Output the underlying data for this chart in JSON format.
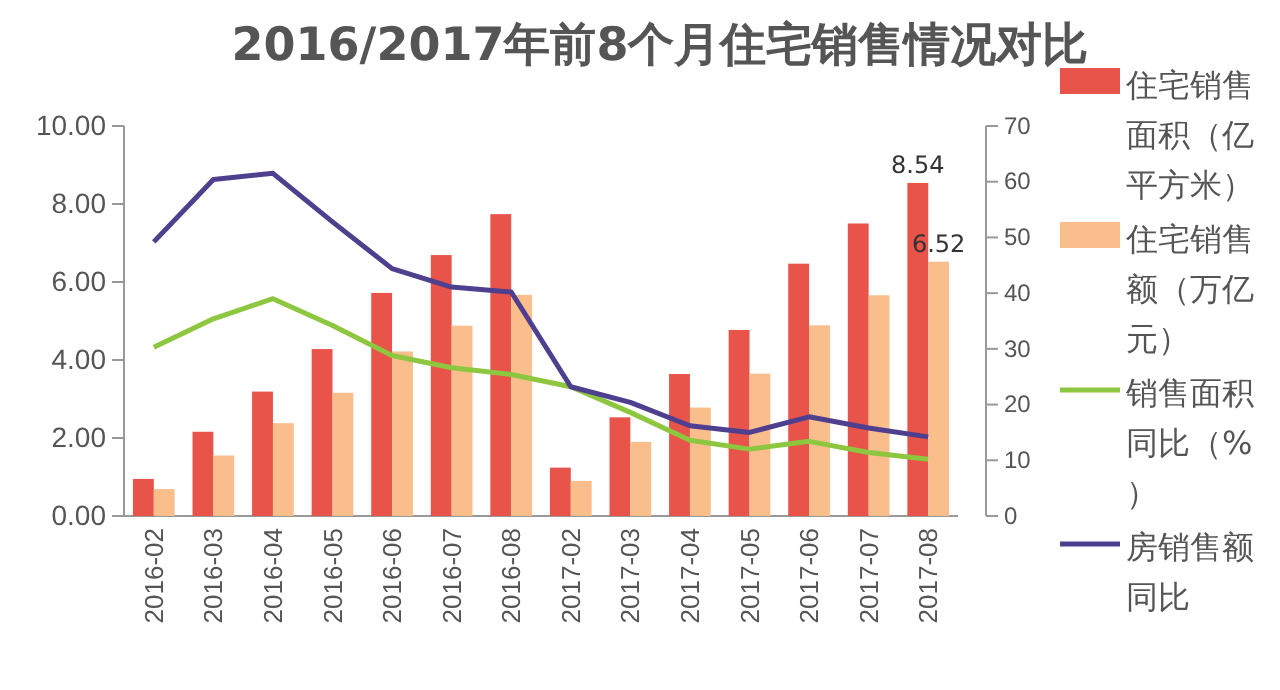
{
  "chart_data": {
    "type": "bar",
    "title": "2016/2017年前8个月住宅销售情况对比",
    "categories": [
      "2016-02",
      "2016-03",
      "2016-04",
      "2016-05",
      "2016-06",
      "2016-07",
      "2016-08",
      "2017-02",
      "2017-03",
      "2017-04",
      "2017-05",
      "2017-06",
      "2017-07",
      "2017-08"
    ],
    "series": [
      {
        "name": "住宅销售面积（亿平方米）",
        "color": "#e8534a",
        "values": [
          0.95,
          2.16,
          3.19,
          4.28,
          5.72,
          6.69,
          7.74,
          1.24,
          2.53,
          3.64,
          4.77,
          6.47,
          7.5,
          8.54
        ],
        "value_labels": [
          null,
          null,
          null,
          null,
          null,
          null,
          null,
          null,
          null,
          null,
          null,
          null,
          null,
          "8.54"
        ]
      },
      {
        "name": "住宅销售额（万亿元）",
        "color": "#f9be8c",
        "values": [
          0.69,
          1.55,
          2.38,
          3.16,
          4.22,
          4.88,
          5.67,
          0.9,
          1.9,
          2.78,
          3.65,
          4.89,
          5.66,
          6.52
        ],
        "value_labels": [
          null,
          null,
          null,
          null,
          null,
          null,
          null,
          null,
          null,
          null,
          null,
          null,
          null,
          "6.52"
        ]
      },
      {
        "name": "销售面积同比（%）",
        "type": "line",
        "axis": "y2",
        "color": "#8dc63f",
        "values": [
          30.3,
          35.4,
          39,
          34.2,
          28.8,
          26.6,
          25.4,
          23.2,
          18.6,
          13.6,
          12,
          13.4,
          11.4,
          10.2
        ]
      },
      {
        "name": "房销售额同比",
        "type": "line",
        "axis": "y2",
        "color": "#4f3f8f",
        "values": [
          49.2,
          60.4,
          61.5,
          52.8,
          44.4,
          41.1,
          40.2,
          23.2,
          20.4,
          16.2,
          15,
          17.8,
          15.8,
          14.2
        ]
      }
    ],
    "ylim": [
      0,
      10
    ],
    "yticks": [
      {
        "value": 0,
        "label": "0.00"
      },
      {
        "value": 2,
        "label": "2.00"
      },
      {
        "value": 4,
        "label": "4.00"
      },
      {
        "value": 6,
        "label": "6.00"
      },
      {
        "value": 8,
        "label": "8.00"
      },
      {
        "value": 10,
        "label": "10.00"
      }
    ],
    "y2lim": [
      0,
      70
    ],
    "y2ticks": [
      0,
      10,
      20,
      30,
      40,
      50,
      60,
      70
    ],
    "legend": "right",
    "grid": false,
    "marker": "none",
    "line_style": "solid"
  }
}
